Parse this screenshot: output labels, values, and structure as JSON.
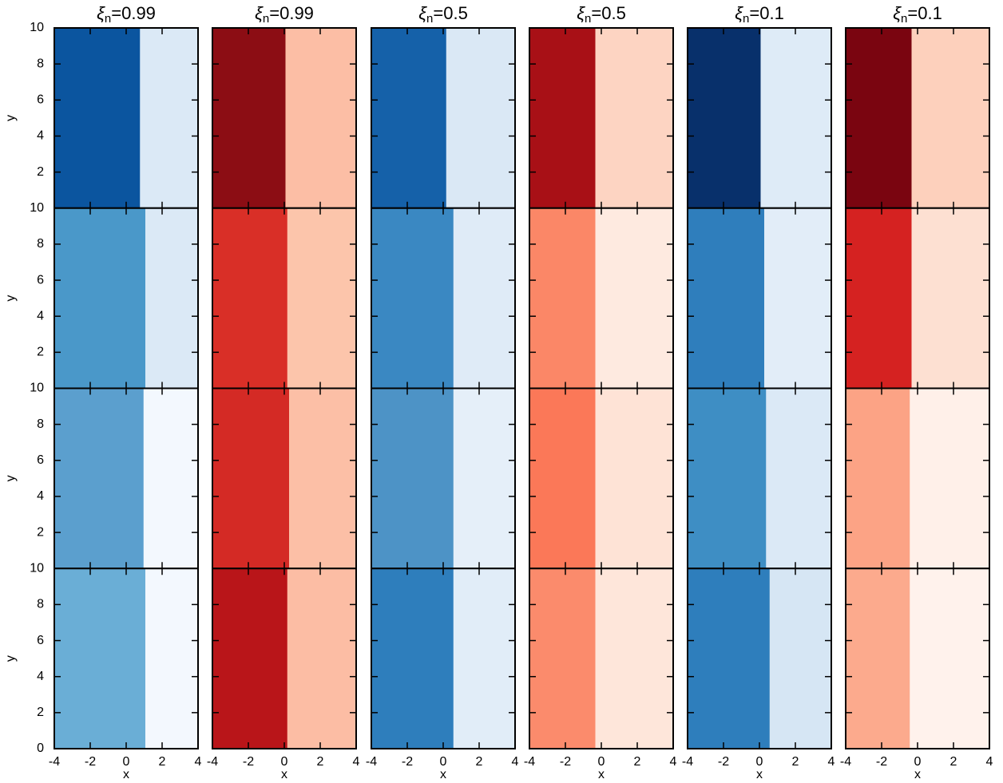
{
  "chart_data": {
    "type": "heatmap",
    "columns": [
      {
        "symbol": "ξ",
        "subscript": "n",
        "label": "=0.99"
      },
      {
        "symbol": "ξ",
        "subscript": "n",
        "label": "=0.99"
      },
      {
        "symbol": "ξ",
        "subscript": "n",
        "label": "=0.5"
      },
      {
        "symbol": "ξ",
        "subscript": "n",
        "label": "=0.5"
      },
      {
        "symbol": "ξ",
        "subscript": "n",
        "label": "=0.1"
      },
      {
        "symbol": "ξ",
        "subscript": "n",
        "label": "=0.1"
      }
    ],
    "xlabel": "x",
    "ylabel": "y",
    "xlim": [
      -4,
      4
    ],
    "xticks": [
      -4,
      -2,
      0,
      2,
      4
    ],
    "ylim": [
      0,
      10
    ],
    "yticks": [
      0,
      2,
      4,
      6,
      8,
      10
    ],
    "panels": [
      [
        {
          "left_color": "#0b559f",
          "right_color": "#dbe9f6",
          "front_x": 0.7
        },
        {
          "left_color": "#8c0d14",
          "right_color": "#fcbea5",
          "front_x": 0
        },
        {
          "left_color": "#1561a9",
          "right_color": "#dae8f5",
          "front_x": 0.1
        },
        {
          "left_color": "#a81016",
          "right_color": "#fdd4c2",
          "front_x": -0.4
        },
        {
          "left_color": "#08306b",
          "right_color": "#deebf7",
          "front_x": 0
        },
        {
          "left_color": "#7a0510",
          "right_color": "#fdd0bc",
          "front_x": -0.4
        }
      ],
      [
        {
          "left_color": "#4a98c9",
          "right_color": "#dbe9f6",
          "front_x": 1
        },
        {
          "left_color": "#d92f27",
          "right_color": "#fcc5ab",
          "front_x": 0.1
        },
        {
          "left_color": "#3a88c2",
          "right_color": "#dfebf7",
          "front_x": 0.5
        },
        {
          "left_color": "#fb8767",
          "right_color": "#feeae0",
          "front_x": -0.4
        },
        {
          "left_color": "#2f7ebc",
          "right_color": "#e2edf8",
          "front_x": 0.2
        },
        {
          "left_color": "#d52221",
          "right_color": "#fde0d2",
          "front_x": -0.4
        }
      ],
      [
        {
          "left_color": "#5b9fce",
          "right_color": "#f3f8fe",
          "front_x": 0.9
        },
        {
          "left_color": "#d42a25",
          "right_color": "#fcbfa6",
          "front_x": 0.2
        },
        {
          "left_color": "#4d93c6",
          "right_color": "#e5eff9",
          "front_x": 0.5
        },
        {
          "left_color": "#fb7858",
          "right_color": "#fee3d6",
          "front_x": -0.4
        },
        {
          "left_color": "#3e8ec4",
          "right_color": "#dbe9f6",
          "front_x": 0.3
        },
        {
          "left_color": "#fca385",
          "right_color": "#fff0e9",
          "front_x": -0.5
        }
      ],
      [
        {
          "left_color": "#6aaed6",
          "right_color": "#f3f8fe",
          "front_x": 1
        },
        {
          "left_color": "#b91519",
          "right_color": "#fcbda4",
          "front_x": 0.1
        },
        {
          "left_color": "#2e7ebc",
          "right_color": "#e1edf8",
          "front_x": 0.5
        },
        {
          "left_color": "#fb8b6c",
          "right_color": "#fee6da",
          "front_x": -0.4
        },
        {
          "left_color": "#2e7ebc",
          "right_color": "#d6e6f4",
          "front_x": 0.5
        },
        {
          "left_color": "#fcaa8d",
          "right_color": "#fff2ec",
          "front_x": -0.5
        }
      ]
    ]
  }
}
